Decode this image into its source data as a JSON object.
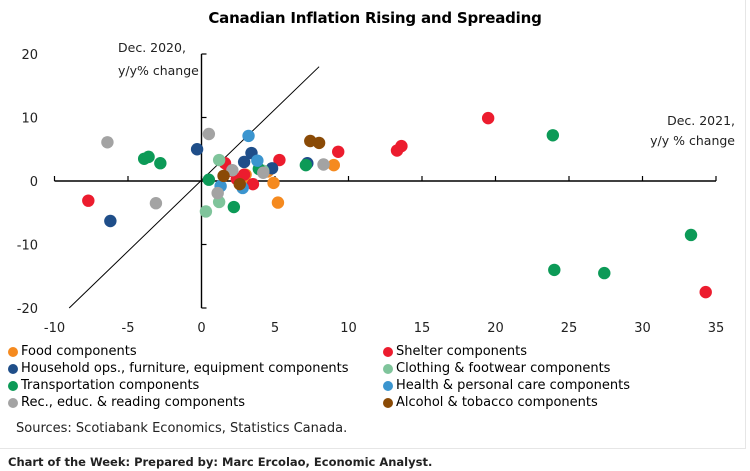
{
  "chart_data": {
    "type": "scatter",
    "title": "Canadian Inflation Rising and Spreading",
    "xlabel": "Dec. 2021, y/y % change",
    "ylabel": "Dec. 2020, y/y% change",
    "xlabel_lines": [
      "Dec. 2021,",
      "y/y % change"
    ],
    "ylabel_lines": [
      "Dec. 2020,",
      "y/y% change"
    ],
    "xlim": [
      -10,
      35
    ],
    "ylim": [
      -20,
      20
    ],
    "xticks": [
      -10,
      -5,
      0,
      5,
      10,
      15,
      20,
      25,
      30,
      35
    ],
    "yticks": [
      -20,
      -10,
      0,
      10,
      20
    ],
    "reference_line": {
      "label": "45-degree line",
      "from": [
        -9,
        -20
      ],
      "to": [
        8,
        18
      ]
    },
    "grid": false,
    "legend_position": "bottom",
    "series": [
      {
        "name": "Food components",
        "color": "#f58a1f",
        "points": [
          [
            9.0,
            2.5
          ],
          [
            4.9,
            -0.3
          ],
          [
            5.2,
            -3.4
          ],
          [
            3.0,
            1.0
          ],
          [
            4.5,
            1.5
          ],
          [
            2.8,
            0.2
          ]
        ]
      },
      {
        "name": "Shelter components",
        "color": "#ec1c2e",
        "points": [
          [
            -7.7,
            -3.1
          ],
          [
            19.5,
            9.9
          ],
          [
            13.3,
            4.8
          ],
          [
            13.6,
            5.5
          ],
          [
            9.3,
            4.6
          ],
          [
            5.3,
            3.3
          ],
          [
            34.3,
            -17.5
          ],
          [
            1.6,
            2.8
          ],
          [
            1.9,
            1.6
          ],
          [
            2.4,
            0.3
          ],
          [
            3.5,
            -0.5
          ],
          [
            2.9,
            1.0
          ]
        ]
      },
      {
        "name": "Household ops., furniture, equipment components",
        "color": "#1f4e89",
        "points": [
          [
            -6.2,
            -6.3
          ],
          [
            -0.3,
            5.0
          ],
          [
            3.4,
            4.4
          ],
          [
            2.9,
            3.0
          ],
          [
            4.8,
            2.0
          ],
          [
            7.2,
            2.8
          ]
        ]
      },
      {
        "name": "Clothing & footwear components",
        "color": "#7fc49b",
        "points": [
          [
            0.3,
            -4.8
          ],
          [
            1.2,
            -3.3
          ],
          [
            1.2,
            3.3
          ],
          [
            4.2,
            1.6
          ]
        ]
      },
      {
        "name": "Transportation components",
        "color": "#0c9a57",
        "points": [
          [
            23.9,
            7.2
          ],
          [
            33.3,
            -8.5
          ],
          [
            24.0,
            -14.0
          ],
          [
            27.4,
            -14.5
          ],
          [
            -3.9,
            3.5
          ],
          [
            -3.6,
            3.8
          ],
          [
            -2.8,
            2.8
          ],
          [
            0.5,
            0.2
          ],
          [
            2.2,
            -4.1
          ],
          [
            7.1,
            2.5
          ],
          [
            3.9,
            1.9
          ]
        ]
      },
      {
        "name": "Health & personal care components",
        "color": "#3b95cf",
        "points": [
          [
            3.2,
            7.1
          ],
          [
            3.8,
            3.2
          ],
          [
            1.3,
            -0.8
          ],
          [
            2.8,
            -1.1
          ]
        ]
      },
      {
        "name": "Rec., educ. & reading components",
        "color": "#a3a3a3",
        "points": [
          [
            -6.4,
            6.1
          ],
          [
            -3.1,
            -3.5
          ],
          [
            0.5,
            7.4
          ],
          [
            1.1,
            -1.9
          ],
          [
            2.1,
            1.7
          ],
          [
            4.2,
            1.3
          ],
          [
            8.3,
            2.6
          ]
        ]
      },
      {
        "name": "Alcohol & tobacco components",
        "color": "#8a4a06",
        "points": [
          [
            7.4,
            6.3
          ],
          [
            8.0,
            6.0
          ],
          [
            1.5,
            0.8
          ],
          [
            2.6,
            -0.5
          ]
        ]
      }
    ]
  },
  "legend": [
    {
      "label": "Food components",
      "color": "#f58a1f"
    },
    {
      "label": "Shelter components",
      "color": "#ec1c2e"
    },
    {
      "label": "Household ops., furniture, equipment components",
      "color": "#1f4e89"
    },
    {
      "label": "Clothing & footwear components",
      "color": "#7fc49b"
    },
    {
      "label": "Transportation components",
      "color": "#0c9a57"
    },
    {
      "label": "Health & personal care components",
      "color": "#3b95cf"
    },
    {
      "label": "Rec., educ. & reading components",
      "color": "#a3a3a3"
    },
    {
      "label": "Alcohol & tobacco components",
      "color": "#8a4a06"
    }
  ],
  "source": "Sources: Scotiabank Economics, Statistics Canada.",
  "footer": "Chart of the Week:  Prepared by: Marc Ercolao, Economic Analyst."
}
